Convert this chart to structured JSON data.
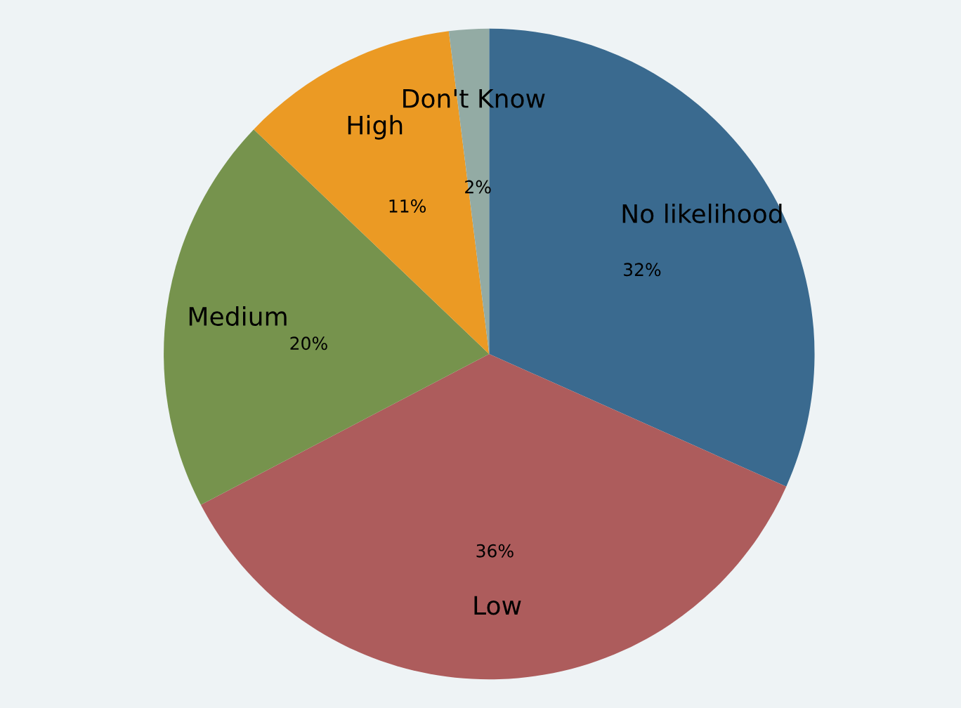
{
  "chart_data": {
    "type": "pie",
    "categories": [
      "No likelihood",
      "Low",
      "Medium",
      "High",
      "Don't Know"
    ],
    "values": [
      32,
      36,
      20,
      11,
      2
    ],
    "value_labels": [
      "32%",
      "36%",
      "20%",
      "11%",
      "2%"
    ],
    "colors": [
      "#3a6a8f",
      "#ad5c5c",
      "#76934d",
      "#eb9a24",
      "#93aba4"
    ]
  }
}
